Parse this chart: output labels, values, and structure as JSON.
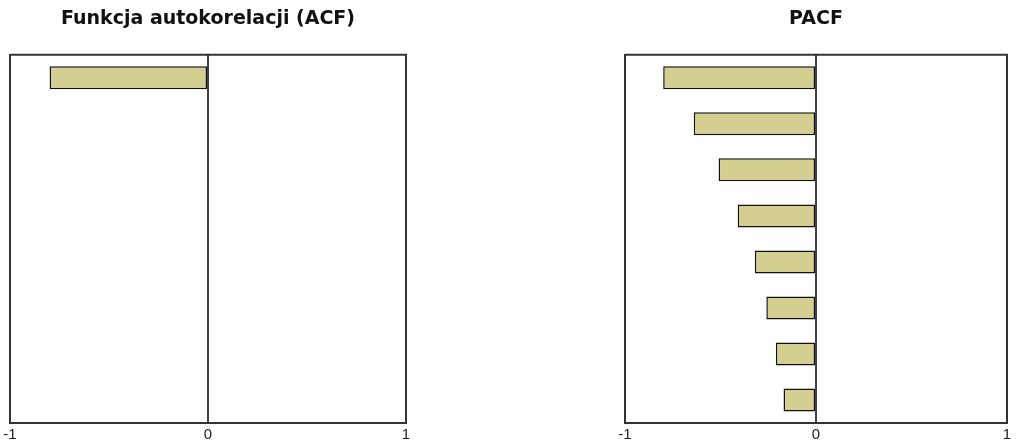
{
  "chart_data": [
    {
      "type": "bar",
      "title": "Funkcja autokorelacji (ACF)",
      "orientation": "horizontal",
      "categories": [
        null,
        null,
        null,
        null,
        null,
        null,
        null,
        null
      ],
      "values": [
        -0.8,
        null,
        null,
        null,
        null,
        null,
        null,
        null
      ],
      "color": "#d4cf90",
      "xlim": [
        -1,
        1
      ],
      "xticks": [
        -1,
        0,
        1
      ],
      "grid": "x",
      "tick_labels": "x"
    },
    {
      "type": "bar",
      "title": "PACF",
      "orientation": "horizontal",
      "categories": [
        null,
        null,
        null,
        null,
        null,
        null,
        null,
        null
      ],
      "values": [
        -0.8,
        -0.64,
        -0.51,
        -0.41,
        -0.32,
        -0.26,
        -0.21,
        -0.17
      ],
      "color": "#d4cf90",
      "xlim": [
        -1,
        1
      ],
      "xticks": [
        -1,
        0,
        1
      ],
      "grid": "x",
      "tick_labels": "x"
    }
  ]
}
